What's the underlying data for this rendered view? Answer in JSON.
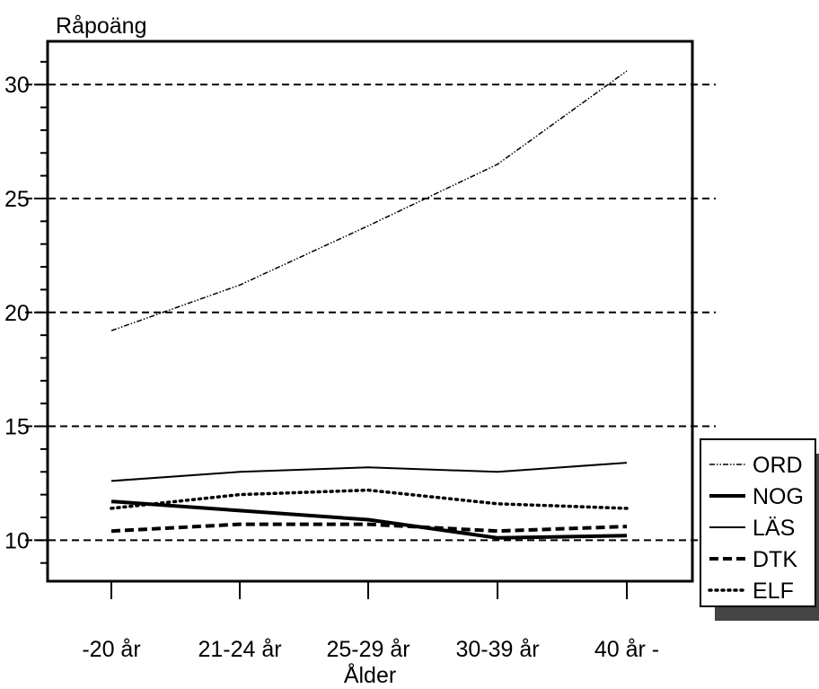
{
  "chart_data": {
    "type": "line",
    "ylabel": "Råpoäng",
    "xlabel": "Ålder",
    "categories": [
      "-20 år",
      "21-24 år",
      "25-29 år",
      "30-39 år",
      "40 år -"
    ],
    "ylim": [
      8.2,
      31.9
    ],
    "yticks": [
      10,
      15,
      20,
      25,
      30
    ],
    "grid": "horizontal dashed at major ticks",
    "legend_position": "right",
    "series": [
      {
        "name": "ORD",
        "style": "dash-dot-dot",
        "values": [
          19.2,
          21.2,
          23.8,
          26.5,
          30.6
        ]
      },
      {
        "name": "NOG",
        "style": "thick-solid",
        "values": [
          11.7,
          11.3,
          10.9,
          10.1,
          10.2
        ]
      },
      {
        "name": "LÄS",
        "style": "solid",
        "values": [
          12.6,
          13.0,
          13.2,
          13.0,
          13.4
        ]
      },
      {
        "name": "DTK",
        "style": "thick-dashed",
        "values": [
          10.4,
          10.7,
          10.7,
          10.4,
          10.6
        ]
      },
      {
        "name": "ELF",
        "style": "dotted",
        "values": [
          11.4,
          12.0,
          12.2,
          11.6,
          11.4
        ]
      }
    ]
  }
}
